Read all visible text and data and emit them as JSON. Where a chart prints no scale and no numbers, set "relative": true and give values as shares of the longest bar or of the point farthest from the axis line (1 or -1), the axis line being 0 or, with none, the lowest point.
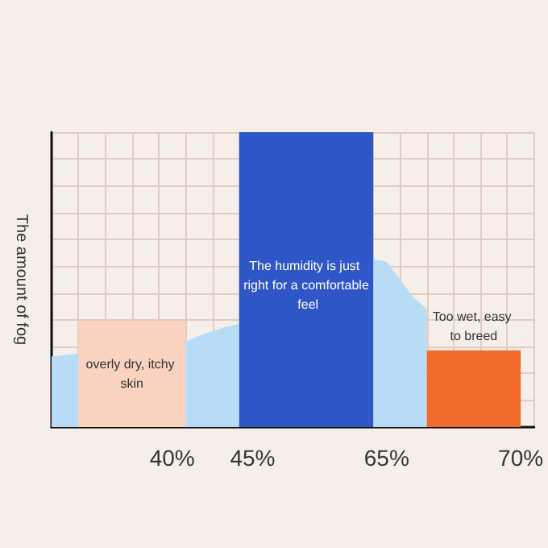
{
  "chart_data": {
    "type": "area",
    "relative": true,
    "ylabel": "The amount of fog",
    "grid": true,
    "legend": false,
    "categories": [
      null,
      null,
      null,
      null,
      null,
      null,
      null,
      null,
      null,
      "40%",
      null,
      null,
      null,
      null,
      null,
      "45%",
      null,
      null,
      null,
      null,
      null,
      null,
      null,
      null,
      null,
      "65%",
      null,
      null,
      null,
      null,
      null,
      null,
      null,
      null,
      null,
      "70%",
      null
    ],
    "series": [
      {
        "color": "#b8dcf5",
        "values": [
          0.24,
          null,
          0.25,
          null,
          null,
          null,
          null,
          null,
          null,
          null,
          0.29,
          0.31,
          null,
          0.34,
          0.35,
          null,
          null,
          null,
          null,
          null,
          null,
          null,
          null,
          null,
          0.57,
          0.56,
          0.5,
          0.44,
          0.4,
          null,
          null,
          null,
          null,
          null,
          null,
          null,
          null
        ]
      },
      {
        "name": "overly dry, itchy skin",
        "color": "#f9d3c0",
        "values": [
          null,
          null,
          0.36,
          0.36,
          0.36,
          0.36,
          0.36,
          0.36,
          0.36,
          0.36,
          0.36,
          null,
          null,
          null,
          null,
          null,
          null,
          null,
          null,
          null,
          null,
          null,
          null,
          null,
          null,
          null,
          null,
          null,
          null,
          null,
          null,
          null,
          null,
          null,
          null,
          null,
          null
        ]
      },
      {
        "name": "The humidity is just right for a comfortable feel",
        "color": "#2f56c6",
        "values": [
          null,
          null,
          null,
          null,
          null,
          null,
          null,
          null,
          null,
          null,
          null,
          null,
          null,
          null,
          1,
          1,
          1,
          1,
          1,
          1,
          1,
          1,
          1,
          1,
          1,
          null,
          null,
          null,
          null,
          null,
          null,
          null,
          null,
          null,
          null,
          null,
          null
        ]
      },
      {
        "name": "Too wet, easy to breed",
        "color": "#f26b2a",
        "values": [
          null,
          null,
          null,
          null,
          null,
          null,
          null,
          null,
          null,
          null,
          null,
          null,
          null,
          null,
          null,
          null,
          null,
          null,
          null,
          null,
          null,
          null,
          null,
          null,
          null,
          null,
          null,
          null,
          0.26,
          0.26,
          0.26,
          0.26,
          0.26,
          0.26,
          0.26,
          0.26,
          null
        ]
      }
    ]
  }
}
